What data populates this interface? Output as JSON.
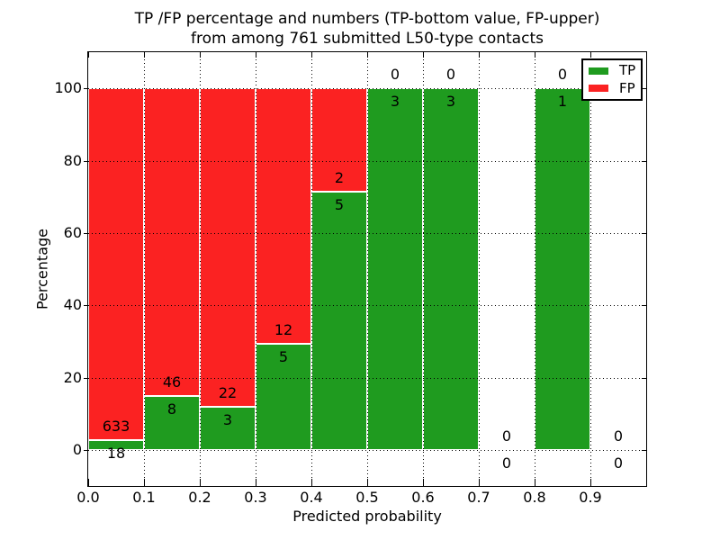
{
  "chart_data": {
    "type": "bar",
    "stacked": true,
    "title_line1": "TP /FP percentage and numbers (TP-bottom value, FP-upper)",
    "title_line2": "from among 761 submitted L50-type contacts",
    "xlabel": "Predicted probability",
    "ylabel": "Percentage",
    "xlim": [
      0.0,
      1.0
    ],
    "ylim": [
      -10,
      110
    ],
    "xticks": [
      0.0,
      0.1,
      0.2,
      0.3,
      0.4,
      0.5,
      0.6,
      0.7,
      0.8,
      0.9
    ],
    "yticks": [
      0,
      20,
      40,
      60,
      80,
      100
    ],
    "grid": true,
    "legend_position": "upper right",
    "colors": {
      "tp": "#1f9b1f",
      "fp": "#fb2222"
    },
    "legend": [
      {
        "label": "TP",
        "series": "tp"
      },
      {
        "label": "FP",
        "series": "fp"
      }
    ],
    "bins": [
      {
        "x0": 0.0,
        "x1": 0.1,
        "tp": 18,
        "fp": 633
      },
      {
        "x0": 0.1,
        "x1": 0.2,
        "tp": 8,
        "fp": 46
      },
      {
        "x0": 0.2,
        "x1": 0.3,
        "tp": 3,
        "fp": 22
      },
      {
        "x0": 0.3,
        "x1": 0.4,
        "tp": 5,
        "fp": 12
      },
      {
        "x0": 0.4,
        "x1": 0.5,
        "tp": 5,
        "fp": 2
      },
      {
        "x0": 0.5,
        "x1": 0.6,
        "tp": 3,
        "fp": 0
      },
      {
        "x0": 0.6,
        "x1": 0.7,
        "tp": 3,
        "fp": 0
      },
      {
        "x0": 0.7,
        "x1": 0.8,
        "tp": 0,
        "fp": 0
      },
      {
        "x0": 0.8,
        "x1": 0.9,
        "tp": 1,
        "fp": 0
      },
      {
        "x0": 0.9,
        "x1": 1.0,
        "tp": 0,
        "fp": 0
      }
    ]
  }
}
